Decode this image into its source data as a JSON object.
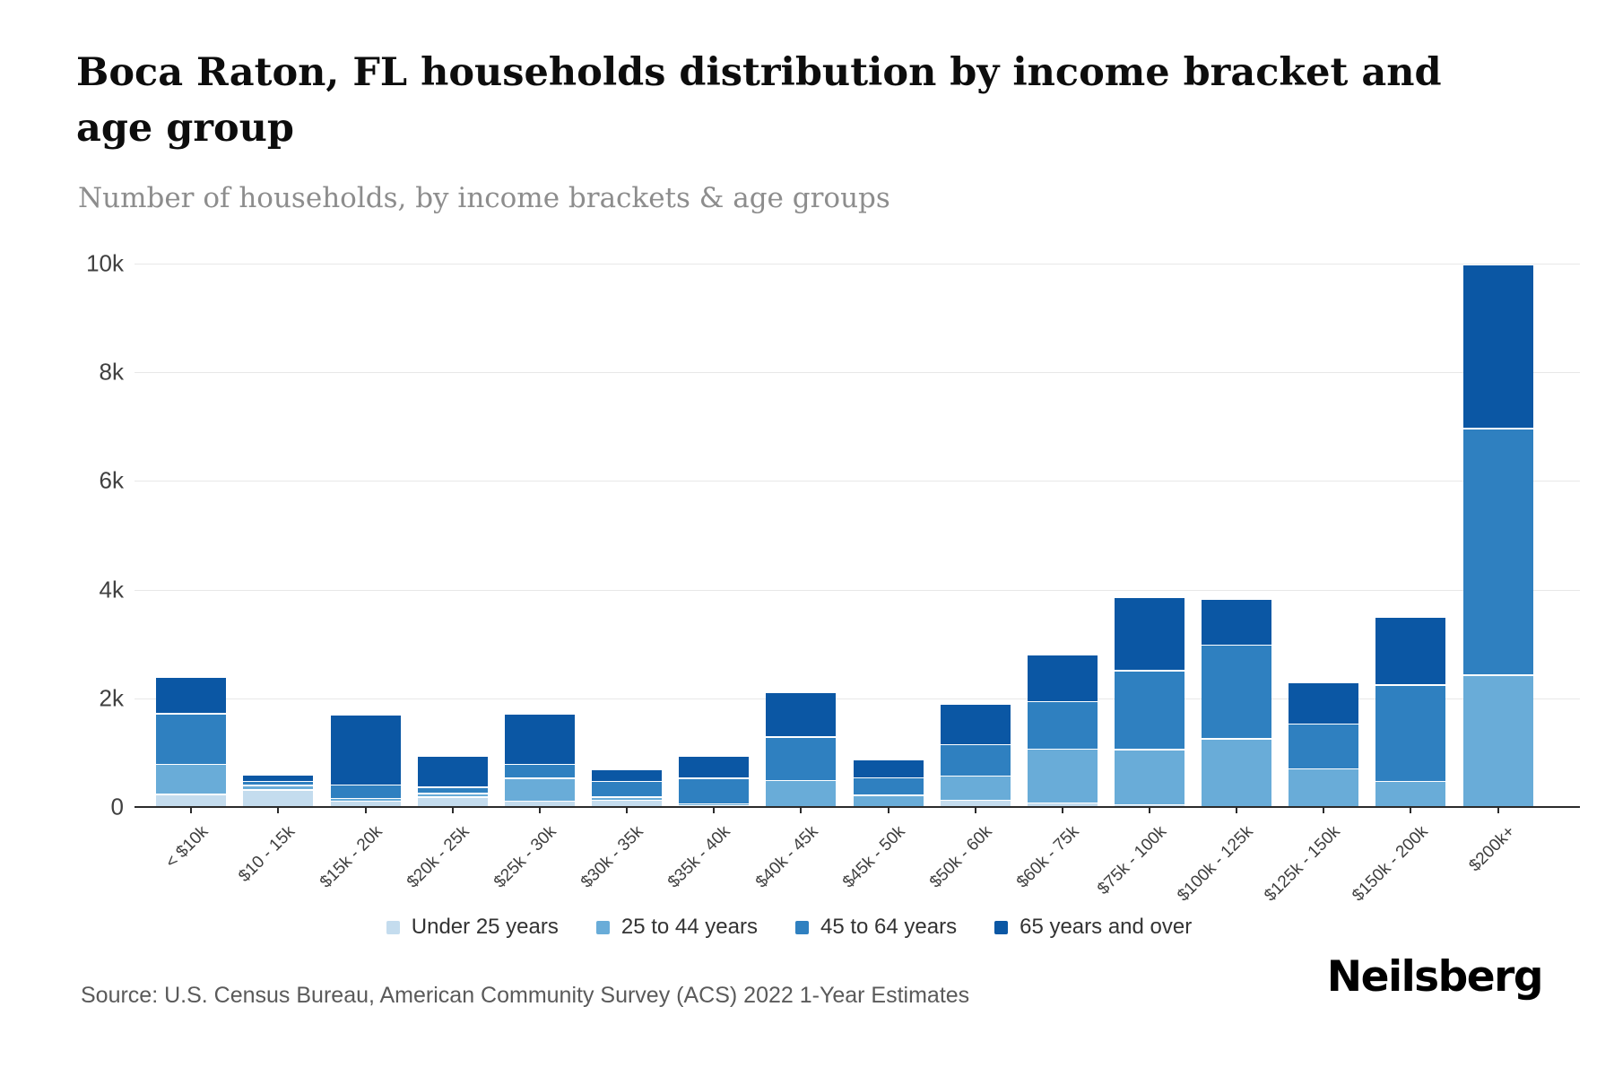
{
  "header": {
    "title": "Boca Raton, FL households distribution by income bracket and age group",
    "subtitle": "Number of households, by income brackets & age groups"
  },
  "footer": {
    "source": "Source: U.S. Census Bureau, American Community Survey (ACS) 2022 1-Year Estimates",
    "brand": "Neilsberg"
  },
  "chart_data": {
    "type": "bar",
    "stacked": true,
    "title": "Boca Raton, FL households distribution by income bracket and age group",
    "ylabel": "Number of households",
    "xlabel": "Income bracket",
    "ylim": [
      0,
      10000
    ],
    "y_ticks": [
      "0",
      "2k",
      "4k",
      "6k",
      "8k",
      "10k"
    ],
    "y_tick_values": [
      0,
      2000,
      4000,
      6000,
      8000,
      10000
    ],
    "grid": "horizontal",
    "legend_position": "bottom-center",
    "categories": [
      "< $10k",
      "$10 - 15k",
      "$15k - 20k",
      "$20k - 25k",
      "$25k - 30k",
      "$30k - 35k",
      "$35k - 40k",
      "$40k - 45k",
      "$45k - 50k",
      "$50k - 60k",
      "$60k - 75k",
      "$75k - 100k",
      "$100k - 125k",
      "$125k - 150k",
      "$150k - 200k",
      "$200k+"
    ],
    "series": [
      {
        "name": "Under 25 years",
        "color": "#c4dcee",
        "values": [
          240,
          330,
          120,
          195,
          120,
          140,
          40,
          0,
          0,
          135,
          85,
          55,
          0,
          0,
          0,
          0
        ]
      },
      {
        "name": "25 to 44 years",
        "color": "#69acd8",
        "values": [
          560,
          80,
          50,
          65,
          420,
          55,
          30,
          500,
          230,
          445,
          990,
          1010,
          1270,
          715,
          480,
          2435
        ]
      },
      {
        "name": "45 to 64 years",
        "color": "#2f80c0",
        "values": [
          930,
          70,
          250,
          115,
          260,
          290,
          470,
          800,
          320,
          580,
          880,
          1455,
          1725,
          825,
          1780,
          4540
        ]
      },
      {
        "name": "65 years and over",
        "color": "#0b57a4",
        "values": [
          670,
          120,
          1280,
          570,
          920,
          215,
          415,
          820,
          340,
          740,
          855,
          1350,
          850,
          770,
          1240,
          3025
        ]
      }
    ]
  }
}
